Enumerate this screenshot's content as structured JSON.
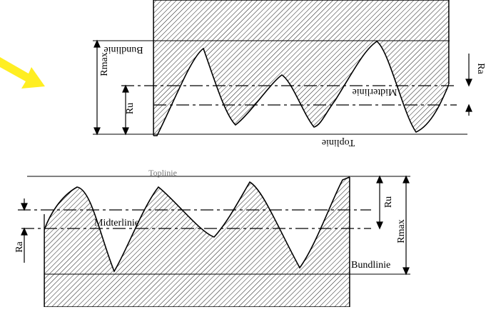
{
  "labels": {
    "bundlinie_top": "Bundlinie",
    "midterlinie_top": "Midterlinie",
    "toplinie_top": "Toplinie",
    "rmax_top": "Rmax",
    "ru_top": "Ru",
    "ra_top": "Ra",
    "toplinie_bottom": "Toplinie",
    "midterlinie_bottom": "Midterlinie",
    "bundlinie_bottom": "Bundlinie",
    "rmax_bottom": "Rmax",
    "ru_bottom": "Ru",
    "ra_bottom": "Ra"
  },
  "colors": {
    "arrow": "#ffee22",
    "line": "#000000",
    "hatch": "#000000"
  }
}
